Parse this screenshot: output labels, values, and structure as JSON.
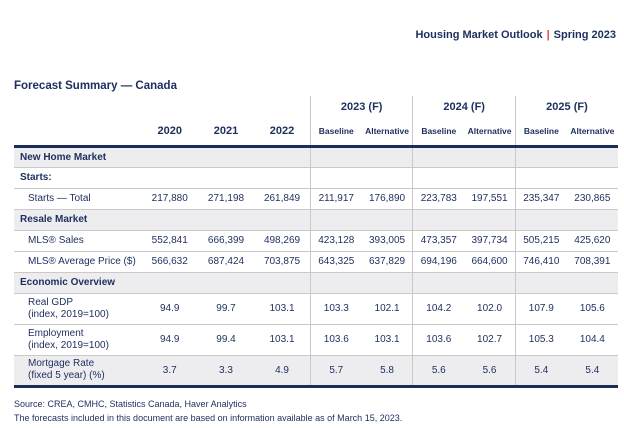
{
  "header": {
    "title": "Housing Market Outlook",
    "pipe": "|",
    "edition": "Spring 2023"
  },
  "page_title": "Forecast Summary — Canada",
  "colors": {
    "navy_text": "#1d2e5e",
    "navy_rule": "#1d2d5a",
    "red_pipe": "#e8413c",
    "row_shade": "#ededf0",
    "light_rule": "#c9c9c9"
  },
  "table": {
    "groups": [
      "2023 (F)",
      "2024 (F)",
      "2025 (F)"
    ],
    "years": [
      "2020",
      "2021",
      "2022"
    ],
    "sub_headers": {
      "baseline": "Baseline",
      "alternative": "Alternative"
    },
    "rows": [
      {
        "type": "section",
        "label": "New Home Market"
      },
      {
        "type": "subsection",
        "label": "Starts:"
      },
      {
        "type": "data",
        "label": "Starts — Total",
        "values": [
          "217,880",
          "271,198",
          "261,849",
          "211,917",
          "176,890",
          "223,783",
          "197,551",
          "235,347",
          "230,865"
        ]
      },
      {
        "type": "section",
        "label": "Resale Market"
      },
      {
        "type": "data",
        "label": "MLS® Sales",
        "values": [
          "552,841",
          "666,399",
          "498,269",
          "423,128",
          "393,005",
          "473,357",
          "397,734",
          "505,215",
          "425,620"
        ]
      },
      {
        "type": "data",
        "label": "MLS® Average Price ($)",
        "values": [
          "566,632",
          "687,424",
          "703,875",
          "643,325",
          "637,829",
          "694,196",
          "664,600",
          "746,410",
          "708,391"
        ]
      },
      {
        "type": "section",
        "label": "Economic Overview"
      },
      {
        "type": "data",
        "label": "Real GDP",
        "label2": "(index, 2019=100)",
        "values": [
          "94.9",
          "99.7",
          "103.1",
          "103.3",
          "102.1",
          "104.2",
          "102.0",
          "107.9",
          "105.6"
        ]
      },
      {
        "type": "data",
        "label": "Employment",
        "label2": "(index, 2019=100)",
        "values": [
          "94.9",
          "99.4",
          "103.1",
          "103.6",
          "103.1",
          "103.6",
          "102.7",
          "105.3",
          "104.4"
        ]
      },
      {
        "type": "data-shaded",
        "label": "Mortgage Rate",
        "label2": "(fixed 5 year) (%)",
        "values": [
          "3.7",
          "3.3",
          "4.9",
          "5.7",
          "5.8",
          "5.6",
          "5.6",
          "5.4",
          "5.4"
        ]
      }
    ]
  },
  "footer": {
    "source": "Source: CREA, CMHC, Statistics Canada, Haver Analytics",
    "note": "The forecasts included in this document are based on information available as of March 15, 2023."
  }
}
